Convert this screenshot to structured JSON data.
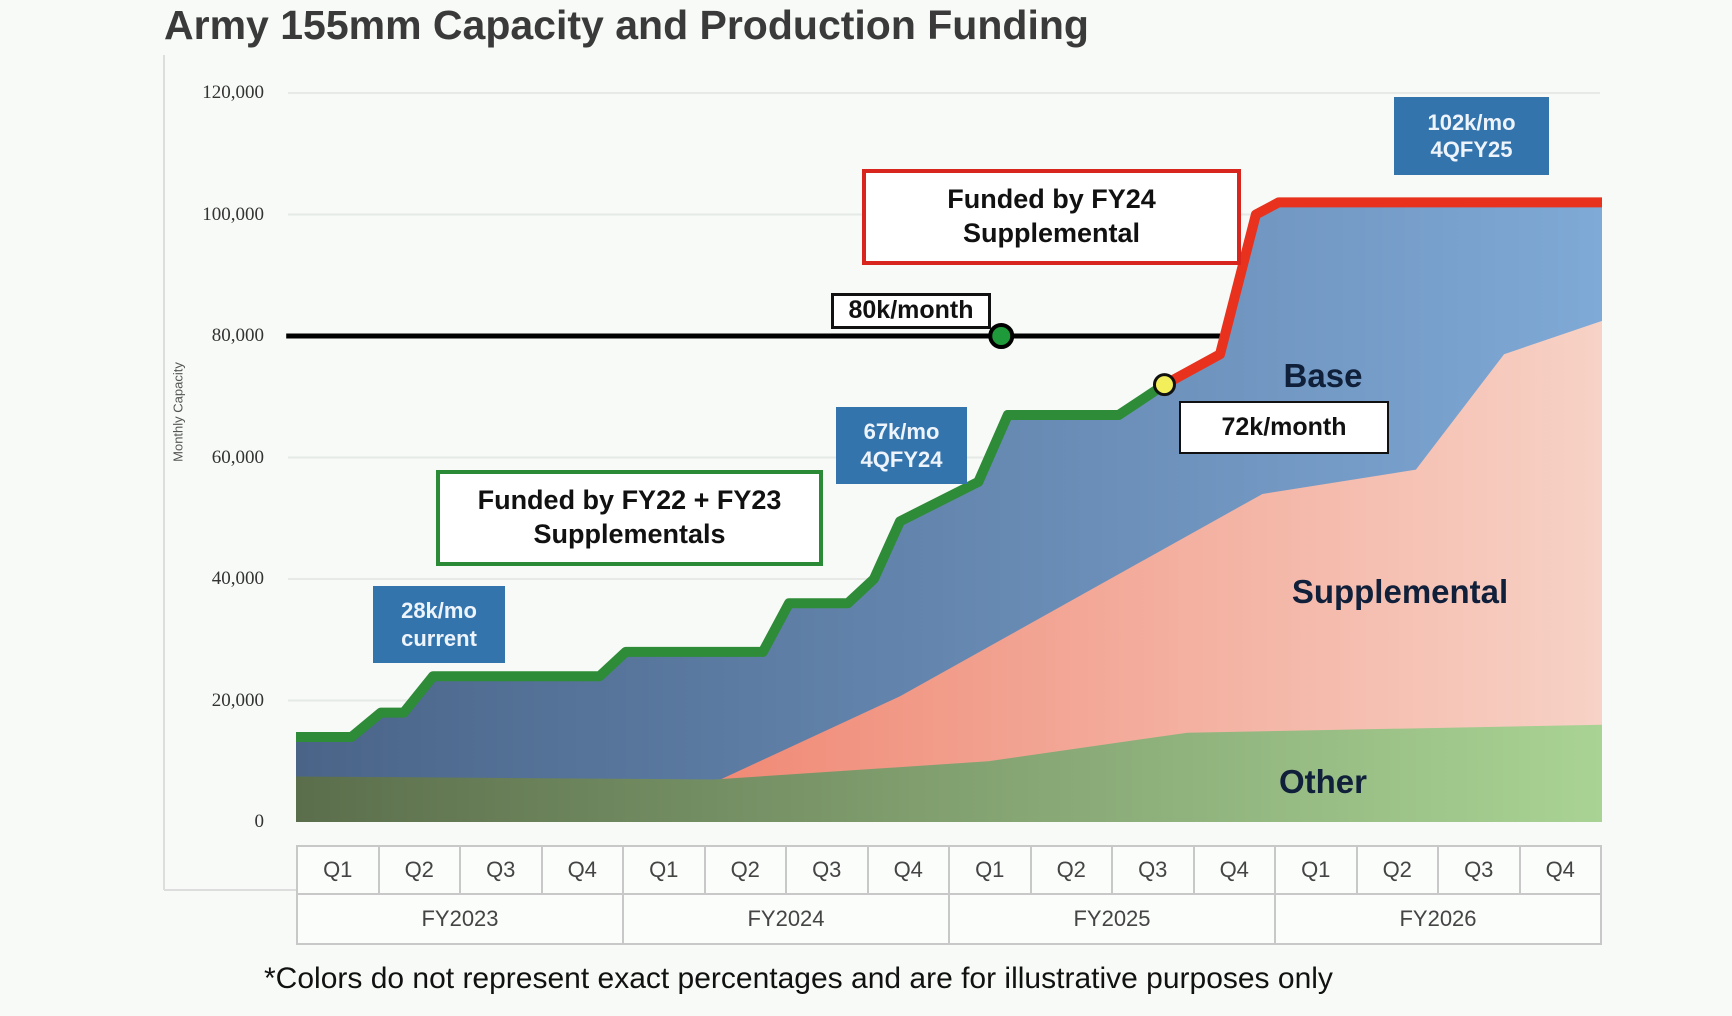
{
  "chart_data": {
    "type": "area",
    "title": "Army 155mm Capacity and Production Funding",
    "ylabel": "Monthly Capacity",
    "ylim": [
      0,
      120000
    ],
    "yticks": [
      "120,000",
      "100,000",
      "80,000",
      "60,000",
      "40,000",
      "20,000",
      "0"
    ],
    "ytick_values": [
      120000,
      100000,
      80000,
      60000,
      40000,
      20000,
      0
    ],
    "xlim_fiscal_year": [
      2023,
      2027
    ],
    "x_quarters": [
      "Q1",
      "Q2",
      "Q3",
      "Q4",
      "Q1",
      "Q2",
      "Q3",
      "Q4",
      "Q1",
      "Q2",
      "Q3",
      "Q4",
      "Q1",
      "Q2",
      "Q3",
      "Q4"
    ],
    "x_years": [
      "FY2023",
      "FY2024",
      "FY2025",
      "FY2026"
    ],
    "grid": true,
    "series": [
      {
        "name": "Other",
        "color_start": "#5b6e4c",
        "color_end": "#a9d394",
        "points": [
          [
            2023.0,
            7500
          ],
          [
            2024.28,
            7000
          ],
          [
            2025.12,
            10000
          ],
          [
            2025.73,
            14700
          ],
          [
            2027.0,
            16000
          ]
        ]
      },
      {
        "name": "Supplemental",
        "color_start": "#f08a76",
        "color_end": "#f7d2c6",
        "points": [
          [
            2024.3,
            7000
          ],
          [
            2024.85,
            20700
          ],
          [
            2025.96,
            54000
          ],
          [
            2026.43,
            58000
          ],
          [
            2026.7,
            77000
          ],
          [
            2027.0,
            82500
          ]
        ]
      },
      {
        "name": "Base",
        "color_start": "#4a6488",
        "color_end": "#7fa9d6",
        "points": "capacity line"
      }
    ],
    "capacity_line_funded_fy22_fy23": {
      "color": "#2e8b37",
      "points": [
        [
          2023.0,
          14000
        ],
        [
          2023.17,
          14000
        ],
        [
          2023.26,
          18000
        ],
        [
          2023.33,
          18000
        ],
        [
          2023.42,
          24000
        ],
        [
          2023.93,
          24000
        ],
        [
          2024.01,
          28000
        ],
        [
          2024.43,
          28000
        ],
        [
          2024.51,
          36000
        ],
        [
          2024.69,
          36000
        ],
        [
          2024.77,
          40000
        ],
        [
          2024.85,
          49500
        ],
        [
          2025.09,
          56000
        ],
        [
          2025.18,
          67000
        ],
        [
          2025.52,
          67000
        ],
        [
          2025.66,
          72000
        ]
      ]
    },
    "capacity_line_funded_fy24": {
      "color": "#e8321e",
      "points": [
        [
          2025.66,
          72000
        ],
        [
          2025.83,
          77000
        ],
        [
          2025.94,
          100000
        ],
        [
          2026.01,
          102000
        ],
        [
          2027.0,
          102000
        ]
      ]
    },
    "target_line": {
      "value": 80000,
      "x_range": [
        2022.97,
        2025.83
      ],
      "marker_x": 2025.16,
      "marker_color": "#1f9a3a",
      "color": "#000000"
    },
    "transition_marker": {
      "x": 2025.66,
      "value": 72000,
      "color": "#f2ef5a"
    },
    "annotations": {
      "current": "28k/mo\ncurrent",
      "funded_fy22_fy23": "Funded by FY22 + FY23\nSupplementals",
      "q4fy24": "67k/mo\n4QFY24",
      "target": "80k/month",
      "funded_fy24": "Funded by FY24\nSupplemental",
      "transition": "72k/month",
      "q4fy25": "102k/mo\n4QFY25"
    },
    "area_labels": {
      "base": "Base",
      "supplemental": "Supplemental",
      "other": "Other"
    },
    "footnote": "*Colors do not represent exact percentages and are for illustrative purposes only"
  }
}
